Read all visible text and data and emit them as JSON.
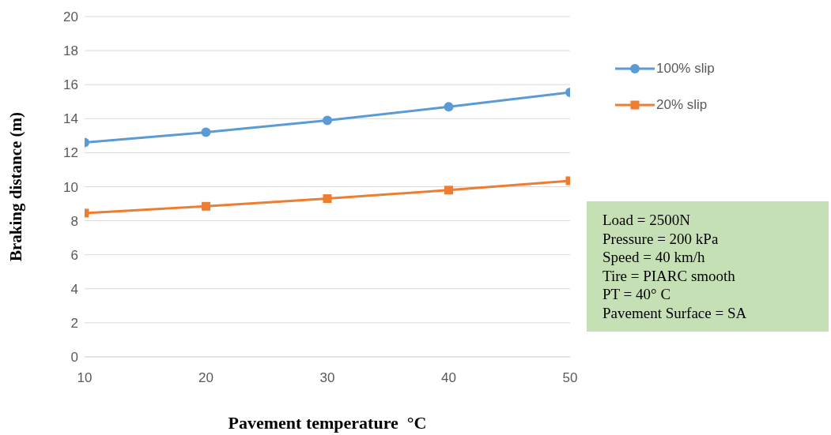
{
  "chart_data": {
    "type": "line",
    "xlabel": "Pavement temperature  °C",
    "ylabel": "Braking distance (m)",
    "x": [
      10,
      20,
      30,
      40,
      50
    ],
    "series": [
      {
        "name": "100% slip",
        "color": "#5b9bd5",
        "marker": "circle",
        "values": [
          12.6,
          13.2,
          13.9,
          14.7,
          15.55
        ]
      },
      {
        "name": "20% slip",
        "color": "#ed7d31",
        "marker": "square",
        "values": [
          8.45,
          8.85,
          9.3,
          9.8,
          10.35
        ]
      }
    ],
    "xlim": [
      10,
      50
    ],
    "xticks": [
      10,
      20,
      30,
      40,
      50
    ],
    "ylim": [
      0,
      20
    ],
    "yticks": [
      0,
      2,
      4,
      6,
      8,
      10,
      12,
      14,
      16,
      18,
      20
    ],
    "grid": "y",
    "legend": "top right",
    "line_style": "solid",
    "annotations": [
      "Load = 2500N",
      "Pressure = 200 kPa",
      "Speed = 40 km/h",
      "Tire = PIARC smooth",
      "PT = 40° C",
      "Pavement Surface = SA"
    ]
  }
}
